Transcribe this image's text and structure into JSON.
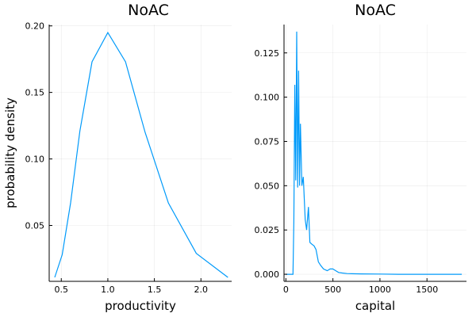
{
  "chart_data": [
    {
      "type": "line",
      "title": "NoAC",
      "xlabel": "productivity",
      "ylabel": "probability density",
      "xlim": [
        0.37,
        2.33
      ],
      "ylim": [
        0.008,
        0.201
      ],
      "xticks": [
        0.5,
        1.0,
        1.5,
        2.0
      ],
      "xtick_labels": [
        "0.5",
        "1.0",
        "1.5",
        "2.0"
      ],
      "yticks": [
        0.05,
        0.1,
        0.15,
        0.2
      ],
      "ytick_labels": [
        "0.05",
        "0.10",
        "0.15",
        "0.20"
      ],
      "grid": true,
      "legend": "none",
      "color": "#009AFA",
      "series": [
        {
          "x": [
            0.43,
            0.51,
            0.6,
            0.7,
            0.83,
            1.0,
            1.19,
            1.4,
            1.65,
            1.95,
            2.29
          ],
          "y": [
            0.011,
            0.028,
            0.067,
            0.121,
            0.173,
            0.195,
            0.173,
            0.12,
            0.067,
            0.029,
            0.011
          ]
        }
      ]
    },
    {
      "type": "line",
      "title": "NoAC",
      "xlabel": "capital",
      "ylabel": "",
      "xlim": [
        -20,
        1920
      ],
      "ylim": [
        -0.004,
        0.141
      ],
      "xticks": [
        0,
        500,
        1000,
        1500
      ],
      "xtick_labels": [
        "0",
        "500",
        "1000",
        "1500"
      ],
      "yticks": [
        0.0,
        0.025,
        0.05,
        0.075,
        0.1,
        0.125
      ],
      "ytick_labels": [
        "0.000",
        "0.025",
        "0.050",
        "0.075",
        "0.100",
        "0.125"
      ],
      "grid": true,
      "legend": "none",
      "color": "#009AFA",
      "series": [
        {
          "x": [
            0,
            75,
            85,
            95,
            105,
            115,
            125,
            135,
            145,
            155,
            170,
            185,
            205,
            220,
            240,
            255,
            275,
            300,
            320,
            345,
            370,
            400,
            440,
            470,
            500,
            530,
            560,
            600,
            650,
            700,
            800,
            1000,
            1200,
            1500,
            1870
          ],
          "y": [
            0.0,
            0.0,
            0.03,
            0.107,
            0.053,
            0.137,
            0.049,
            0.115,
            0.05,
            0.085,
            0.05,
            0.055,
            0.031,
            0.025,
            0.038,
            0.018,
            0.017,
            0.016,
            0.014,
            0.007,
            0.005,
            0.003,
            0.002,
            0.003,
            0.003,
            0.002,
            0.001,
            0.0007,
            0.0004,
            0.0003,
            0.0002,
            0.0001,
            0.0,
            0.0,
            0.0
          ]
        }
      ]
    }
  ]
}
